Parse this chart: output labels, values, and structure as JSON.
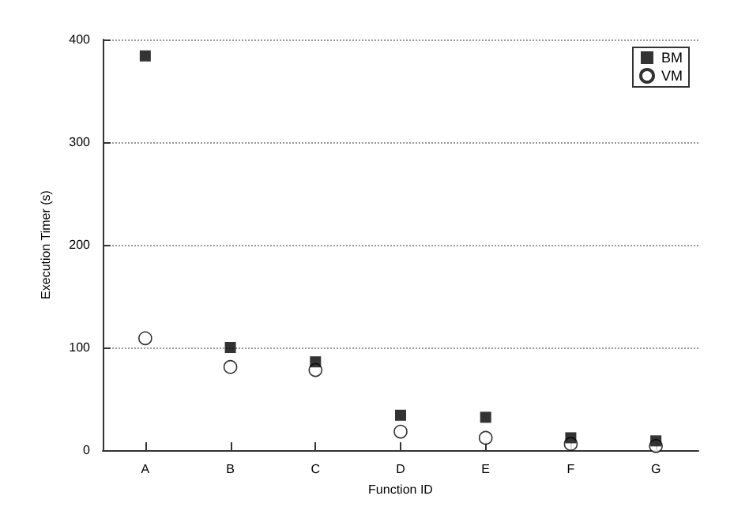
{
  "chart_data": {
    "type": "scatter",
    "xlabel": "Function ID",
    "ylabel": "Execution Timer (s)",
    "categories": [
      "A",
      "B",
      "C",
      "D",
      "E",
      "F",
      "G"
    ],
    "series": [
      {
        "name": "BM",
        "color": "#000000",
        "marker": "square",
        "values": [
          384,
          100,
          86,
          34,
          32,
          12,
          9
        ]
      },
      {
        "name": "VM",
        "color": "#000000",
        "marker": "circle",
        "values": [
          109,
          81,
          78,
          18,
          12,
          6,
          4
        ]
      }
    ],
    "ylim": [
      0,
      400
    ],
    "yticks": [
      0,
      100,
      200,
      300,
      400
    ],
    "grid": "y",
    "legend": "top right"
  }
}
